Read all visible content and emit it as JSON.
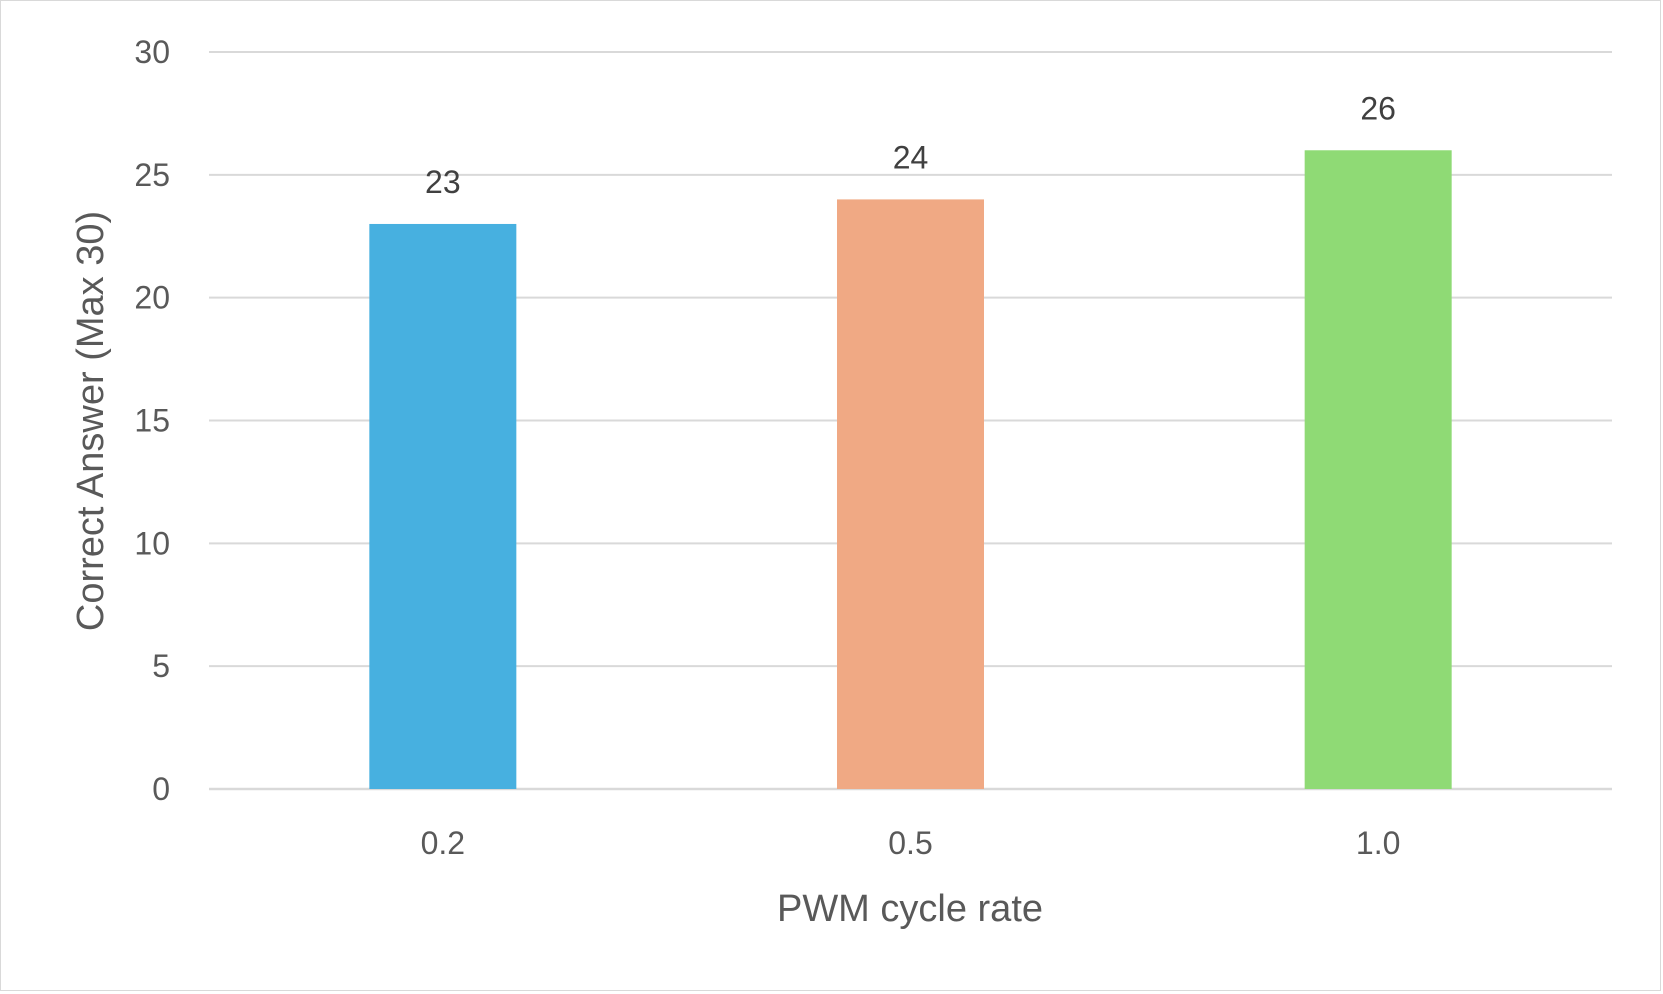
{
  "chart_data": {
    "type": "bar",
    "title": "",
    "xlabel": "PWM cycle rate",
    "ylabel": "Correct Answer (Max 30)",
    "categories": [
      "0.2",
      "0.5",
      "1.0"
    ],
    "values": [
      23,
      24,
      26
    ],
    "data_labels": [
      "23",
      "24",
      "26"
    ],
    "bar_colors": [
      "#47b0e0",
      "#f0a984",
      "#8fda75"
    ],
    "ylim": [
      0,
      30
    ],
    "yticks": [
      0,
      5,
      10,
      15,
      20,
      25,
      30
    ],
    "grid": true,
    "legend": "none"
  }
}
